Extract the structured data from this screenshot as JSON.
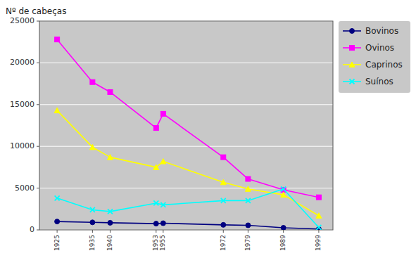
{
  "chart_data": {
    "type": "line",
    "y_label": "Nº de cabeças",
    "x": [
      1925,
      1935,
      1940,
      1953,
      1955,
      1972,
      1979,
      1989,
      1999
    ],
    "series": [
      {
        "name": "Bovinos",
        "color": "#000080",
        "marker": "circle",
        "values": [
          1000,
          900,
          850,
          750,
          800,
          600,
          550,
          250,
          100
        ]
      },
      {
        "name": "Ovinos",
        "color": "#FF00FF",
        "marker": "square",
        "values": [
          22800,
          17700,
          16500,
          12200,
          13900,
          8700,
          6100,
          4800,
          3900
        ]
      },
      {
        "name": "Caprinos",
        "color": "#FFFF00",
        "marker": "triangle",
        "values": [
          14300,
          9900,
          8700,
          7500,
          8200,
          5700,
          4900,
          4200,
          1700
        ]
      },
      {
        "name": "Suínos",
        "color": "#00FFFF",
        "marker": "x",
        "values": [
          3800,
          2400,
          2200,
          3200,
          3000,
          3500,
          3500,
          4900,
          300
        ]
      }
    ],
    "xlim": [
      1920,
      2003
    ],
    "xticks": [
      1925,
      1935,
      1940,
      1953,
      1955,
      1972,
      1979,
      1989,
      1999
    ],
    "ylim": [
      0,
      25000
    ],
    "yticks": [
      0,
      5000,
      10000,
      15000,
      20000,
      25000
    ],
    "grid": true,
    "legend": "right"
  }
}
